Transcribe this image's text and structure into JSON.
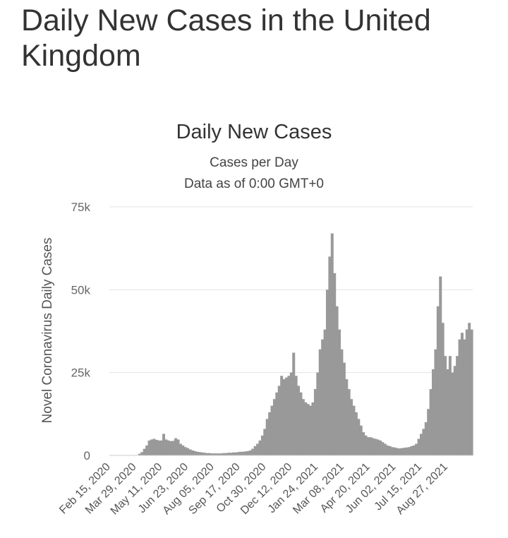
{
  "page": {
    "title": "Daily New Cases in the United Kingdom"
  },
  "chart_data": {
    "type": "bar",
    "title": "Daily New Cases",
    "subtitle_line1": "Cases per Day",
    "subtitle_line2": "Data as of 0:00 GMT+0",
    "ylabel": "Novel Coronavirus Daily Cases",
    "ylim": [
      0,
      75000
    ],
    "y_ticks": [
      {
        "value": 0,
        "label": "0"
      },
      {
        "value": 25000,
        "label": "25k"
      },
      {
        "value": 50000,
        "label": "50k"
      },
      {
        "value": 75000,
        "label": "75k"
      }
    ],
    "x_tick_labels": [
      "Feb 15, 2020",
      "Mar 29, 2020",
      "May 11, 2020",
      "Jun 23, 2020",
      "Aug 05, 2020",
      "Sep 17, 2020",
      "Oct 30, 2020",
      "Dec 12, 2020",
      "Jan 24, 2021",
      "Mar 08, 2021",
      "Apr 20, 2021",
      "Jun 02, 2021",
      "Jul 15, 2021",
      "Aug 27, 2021"
    ],
    "bar_color": "#999999",
    "grid": true,
    "series": [
      {
        "name": "",
        "x_range": [
          "Feb 15, 2020",
          "Sep 09, 2021"
        ],
        "interval_days": 3,
        "values": [
          0,
          0,
          0,
          0,
          0,
          0,
          0,
          0,
          0,
          0,
          0,
          100,
          500,
          1000,
          2000,
          3000,
          4500,
          4800,
          5000,
          4700,
          4500,
          4500,
          6500,
          4800,
          4500,
          4300,
          4400,
          5200,
          4800,
          3500,
          3000,
          2500,
          2200,
          1800,
          1500,
          1300,
          1100,
          1000,
          900,
          800,
          700,
          700,
          600,
          600,
          600,
          600,
          600,
          700,
          700,
          800,
          800,
          900,
          900,
          1000,
          1100,
          1100,
          1200,
          1300,
          1500,
          2000,
          2800,
          3500,
          4500,
          6000,
          8000,
          11000,
          13000,
          15000,
          17000,
          19000,
          21000,
          24000,
          23000,
          23500,
          24000,
          25000,
          31000,
          24000,
          21000,
          19000,
          17000,
          16000,
          15500,
          15000,
          16000,
          20000,
          25000,
          32000,
          35000,
          38000,
          50000,
          60000,
          67000,
          55000,
          45000,
          38000,
          32000,
          28000,
          23000,
          20000,
          17000,
          15000,
          13000,
          11000,
          9000,
          7000,
          6000,
          5500,
          5500,
          5200,
          5000,
          4800,
          4500,
          4000,
          3500,
          3000,
          2800,
          2500,
          2400,
          2200,
          2100,
          2200,
          2300,
          2400,
          2500,
          2800,
          3000,
          3500,
          5000,
          6500,
          8000,
          10000,
          14000,
          20000,
          26000,
          32000,
          45000,
          54000,
          40000,
          30000,
          26000,
          30000,
          25000,
          27000,
          30000,
          35000,
          37000,
          35000,
          38000,
          40000,
          38000
        ]
      }
    ]
  }
}
